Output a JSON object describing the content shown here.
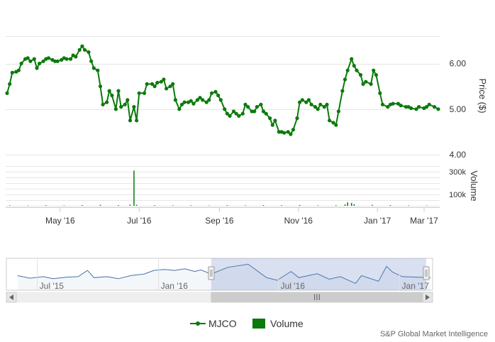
{
  "chart_data": {
    "type": "line",
    "series": [
      {
        "name": "MJCO",
        "color": "#0b7a0b",
        "points": [
          [
            "2016-03-21",
            5.35
          ],
          [
            "2016-03-23",
            5.55
          ],
          [
            "2016-03-25",
            5.8
          ],
          [
            "2016-03-28",
            5.82
          ],
          [
            "2016-03-30",
            5.85
          ],
          [
            "2016-04-01",
            6.0
          ],
          [
            "2016-04-04",
            6.1
          ],
          [
            "2016-04-06",
            6.12
          ],
          [
            "2016-04-08",
            6.05
          ],
          [
            "2016-04-11",
            6.1
          ],
          [
            "2016-04-13",
            5.9
          ],
          [
            "2016-04-15",
            6.0
          ],
          [
            "2016-04-18",
            6.05
          ],
          [
            "2016-04-20",
            6.1
          ],
          [
            "2016-04-22",
            6.12
          ],
          [
            "2016-04-25",
            6.08
          ],
          [
            "2016-04-27",
            6.05
          ],
          [
            "2016-04-29",
            6.05
          ],
          [
            "2016-05-02",
            6.08
          ],
          [
            "2016-05-04",
            6.12
          ],
          [
            "2016-05-06",
            6.1
          ],
          [
            "2016-05-09",
            6.1
          ],
          [
            "2016-05-11",
            6.18
          ],
          [
            "2016-05-13",
            6.15
          ],
          [
            "2016-05-16",
            6.3
          ],
          [
            "2016-05-18",
            6.38
          ],
          [
            "2016-05-20",
            6.3
          ],
          [
            "2016-05-23",
            6.25
          ],
          [
            "2016-05-25",
            6.05
          ],
          [
            "2016-05-27",
            5.9
          ],
          [
            "2016-05-30",
            5.85
          ],
          [
            "2016-06-01",
            5.5
          ],
          [
            "2016-06-03",
            5.1
          ],
          [
            "2016-06-06",
            5.15
          ],
          [
            "2016-06-08",
            5.4
          ],
          [
            "2016-06-10",
            5.3
          ],
          [
            "2016-06-13",
            5.0
          ],
          [
            "2016-06-15",
            5.4
          ],
          [
            "2016-06-17",
            5.05
          ],
          [
            "2016-06-20",
            5.1
          ],
          [
            "2016-06-22",
            5.2
          ],
          [
            "2016-06-24",
            4.75
          ],
          [
            "2016-06-27",
            5.05
          ],
          [
            "2016-06-29",
            4.75
          ],
          [
            "2016-07-01",
            5.35
          ],
          [
            "2016-07-05",
            5.35
          ],
          [
            "2016-07-07",
            5.55
          ],
          [
            "2016-07-11",
            5.55
          ],
          [
            "2016-07-13",
            5.5
          ],
          [
            "2016-07-15",
            5.58
          ],
          [
            "2016-07-18",
            5.6
          ],
          [
            "2016-07-20",
            5.65
          ],
          [
            "2016-07-22",
            5.45
          ],
          [
            "2016-07-25",
            5.5
          ],
          [
            "2016-07-27",
            5.55
          ],
          [
            "2016-07-29",
            5.2
          ],
          [
            "2016-08-01",
            5.0
          ],
          [
            "2016-08-03",
            5.1
          ],
          [
            "2016-08-05",
            5.15
          ],
          [
            "2016-08-08",
            5.15
          ],
          [
            "2016-08-10",
            5.18
          ],
          [
            "2016-08-12",
            5.12
          ],
          [
            "2016-08-15",
            5.2
          ],
          [
            "2016-08-17",
            5.25
          ],
          [
            "2016-08-19",
            5.2
          ],
          [
            "2016-08-22",
            5.15
          ],
          [
            "2016-08-24",
            5.2
          ],
          [
            "2016-08-26",
            5.35
          ],
          [
            "2016-08-29",
            5.38
          ],
          [
            "2016-08-31",
            5.3
          ],
          [
            "2016-09-02",
            5.2
          ],
          [
            "2016-09-05",
            5.0
          ],
          [
            "2016-09-07",
            4.9
          ],
          [
            "2016-09-09",
            4.85
          ],
          [
            "2016-09-12",
            4.95
          ],
          [
            "2016-09-14",
            4.9
          ],
          [
            "2016-09-16",
            4.85
          ],
          [
            "2016-09-19",
            4.9
          ],
          [
            "2016-09-21",
            5.1
          ],
          [
            "2016-09-23",
            5.05
          ],
          [
            "2016-09-26",
            4.95
          ],
          [
            "2016-09-28",
            4.95
          ],
          [
            "2016-09-30",
            5.05
          ],
          [
            "2016-10-03",
            5.1
          ],
          [
            "2016-10-05",
            4.95
          ],
          [
            "2016-10-07",
            4.9
          ],
          [
            "2016-10-10",
            4.8
          ],
          [
            "2016-10-12",
            4.65
          ],
          [
            "2016-10-14",
            4.75
          ],
          [
            "2016-10-17",
            4.5
          ],
          [
            "2016-10-19",
            4.5
          ],
          [
            "2016-10-21",
            4.48
          ],
          [
            "2016-10-24",
            4.5
          ],
          [
            "2016-10-26",
            4.45
          ],
          [
            "2016-10-28",
            4.55
          ],
          [
            "2016-10-31",
            4.8
          ],
          [
            "2016-11-02",
            5.15
          ],
          [
            "2016-11-04",
            5.2
          ],
          [
            "2016-11-07",
            5.15
          ],
          [
            "2016-11-09",
            5.2
          ],
          [
            "2016-11-11",
            5.1
          ],
          [
            "2016-11-14",
            5.05
          ],
          [
            "2016-11-16",
            5.0
          ],
          [
            "2016-11-18",
            5.1
          ],
          [
            "2016-11-21",
            5.05
          ],
          [
            "2016-11-23",
            5.1
          ],
          [
            "2016-11-25",
            4.75
          ],
          [
            "2016-11-28",
            4.7
          ],
          [
            "2016-11-30",
            4.65
          ],
          [
            "2016-12-02",
            4.95
          ],
          [
            "2016-12-05",
            5.4
          ],
          [
            "2016-12-07",
            5.65
          ],
          [
            "2016-12-09",
            5.85
          ],
          [
            "2016-12-12",
            6.1
          ],
          [
            "2016-12-14",
            5.95
          ],
          [
            "2016-12-16",
            5.85
          ],
          [
            "2016-12-19",
            5.75
          ],
          [
            "2016-12-21",
            5.55
          ],
          [
            "2016-12-23",
            5.6
          ],
          [
            "2016-12-27",
            5.55
          ],
          [
            "2016-12-29",
            5.85
          ],
          [
            "2016-12-31",
            5.75
          ],
          [
            "2017-01-03",
            5.35
          ],
          [
            "2017-01-05",
            5.1
          ],
          [
            "2017-01-09",
            5.05
          ],
          [
            "2017-01-11",
            5.1
          ],
          [
            "2017-01-13",
            5.12
          ],
          [
            "2017-01-17",
            5.12
          ],
          [
            "2017-01-19",
            5.08
          ],
          [
            "2017-01-23",
            5.05
          ],
          [
            "2017-01-25",
            5.05
          ],
          [
            "2017-01-27",
            5.02
          ],
          [
            "2017-01-31",
            5.0
          ],
          [
            "2017-02-02",
            5.05
          ],
          [
            "2017-02-06",
            5.02
          ],
          [
            "2017-02-08",
            5.05
          ],
          [
            "2017-02-10",
            5.1
          ],
          [
            "2017-02-14",
            5.05
          ],
          [
            "2017-02-17",
            5.0
          ]
        ]
      },
      {
        "name": "Volume",
        "color": "#0b7a0b",
        "points": [
          [
            "2016-03-23",
            4000
          ],
          [
            "2016-04-06",
            3000
          ],
          [
            "2016-04-20",
            5000
          ],
          [
            "2016-05-04",
            3000
          ],
          [
            "2016-05-18",
            6000
          ],
          [
            "2016-06-01",
            8000
          ],
          [
            "2016-06-15",
            6000
          ],
          [
            "2016-06-24",
            10000
          ],
          [
            "2016-06-27",
            310000
          ],
          [
            "2016-06-29",
            9000
          ],
          [
            "2016-07-13",
            5000
          ],
          [
            "2016-07-27",
            4000
          ],
          [
            "2016-08-10",
            4000
          ],
          [
            "2016-08-24",
            3000
          ],
          [
            "2016-09-07",
            5000
          ],
          [
            "2016-09-21",
            4000
          ],
          [
            "2016-10-05",
            6000
          ],
          [
            "2016-10-19",
            5000
          ],
          [
            "2016-11-02",
            7000
          ],
          [
            "2016-11-16",
            4000
          ],
          [
            "2016-11-30",
            6000
          ],
          [
            "2016-12-07",
            12000
          ],
          [
            "2016-12-09",
            30000
          ],
          [
            "2016-12-12",
            25000
          ],
          [
            "2016-12-14",
            14000
          ],
          [
            "2016-12-28",
            8000
          ],
          [
            "2017-01-11",
            6000
          ],
          [
            "2017-01-25",
            4000
          ],
          [
            "2017-02-08",
            3000
          ]
        ]
      }
    ],
    "x_ticks": [
      "May '16",
      "Jul '16",
      "Sep '16",
      "Nov '16",
      "Jan '17",
      "Mar '17"
    ],
    "price_axis": {
      "title": "Price ($)",
      "ticks": [
        "6.00",
        "5.00",
        "4.00"
      ],
      "range": [
        4.0,
        6.6
      ]
    },
    "volume_axis": {
      "title": "Volume",
      "ticks": [
        "300k",
        "100k"
      ],
      "range": [
        0,
        350000
      ]
    },
    "navigator": {
      "ticks": [
        "Jul '15",
        "Jan '16",
        "Jul '16",
        "Jan '17"
      ],
      "selected_range": [
        "2016-03-21",
        "2017-02-17"
      ],
      "scrollbar_grip": "III",
      "points": [
        [
          "2015-06-01",
          5.2
        ],
        [
          "2015-06-20",
          4.95
        ],
        [
          "2015-07-10",
          5.1
        ],
        [
          "2015-07-25",
          4.9
        ],
        [
          "2015-08-15",
          5.05
        ],
        [
          "2015-09-01",
          5.1
        ],
        [
          "2015-09-15",
          5.7
        ],
        [
          "2015-09-25",
          5.0
        ],
        [
          "2015-10-15",
          5.1
        ],
        [
          "2015-11-01",
          4.9
        ],
        [
          "2015-11-20",
          5.2
        ],
        [
          "2015-12-10",
          5.35
        ],
        [
          "2015-12-25",
          5.7
        ],
        [
          "2016-01-10",
          5.8
        ],
        [
          "2016-01-25",
          5.7
        ],
        [
          "2016-02-10",
          5.85
        ],
        [
          "2016-02-25",
          5.6
        ],
        [
          "2016-03-05",
          5.75
        ],
        [
          "2016-03-21",
          5.35
        ],
        [
          "2016-04-15",
          6.0
        ],
        [
          "2016-05-16",
          6.3
        ],
        [
          "2016-06-13",
          5.0
        ],
        [
          "2016-06-29",
          4.75
        ],
        [
          "2016-07-20",
          5.6
        ],
        [
          "2016-08-01",
          5.0
        ],
        [
          "2016-08-29",
          5.38
        ],
        [
          "2016-09-16",
          4.85
        ],
        [
          "2016-10-03",
          5.1
        ],
        [
          "2016-10-26",
          4.45
        ],
        [
          "2016-11-04",
          5.2
        ],
        [
          "2016-11-30",
          4.65
        ],
        [
          "2016-12-12",
          6.1
        ],
        [
          "2016-12-21",
          5.55
        ],
        [
          "2017-01-05",
          5.1
        ],
        [
          "2017-02-17",
          5.0
        ]
      ]
    },
    "legend": {
      "placement": "bottom",
      "items": [
        "MJCO",
        "Volume"
      ]
    },
    "credit": "S&P Global Market Intelligence"
  }
}
